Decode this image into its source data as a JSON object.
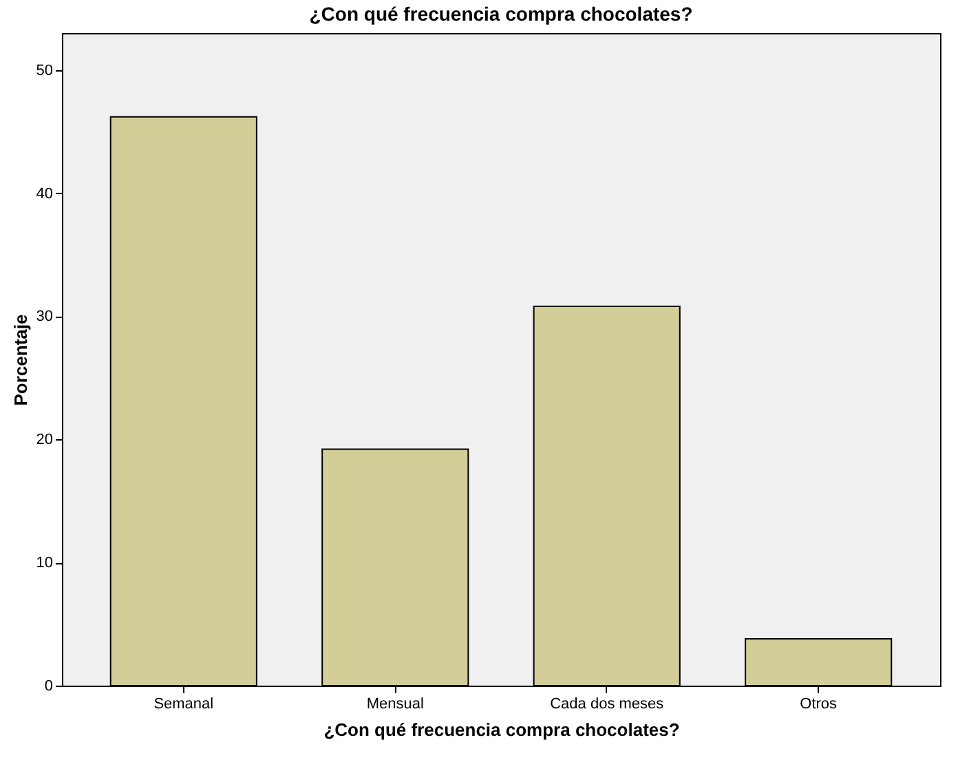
{
  "chart_data": {
    "type": "bar",
    "title": "¿Con qué frecuencia compra chocolates?",
    "xlabel": "¿Con qué frecuencia compra chocolates?",
    "ylabel": "Porcentaje",
    "categories": [
      "Semanal",
      "Mensual",
      "Cada dos meses",
      "Otros"
    ],
    "values": [
      46.2,
      19.2,
      30.8,
      3.8
    ],
    "color": "#d3ce97",
    "ylim": [
      0,
      53
    ],
    "yticks": [
      0,
      10,
      20,
      30,
      40,
      50
    ],
    "grid": false
  }
}
